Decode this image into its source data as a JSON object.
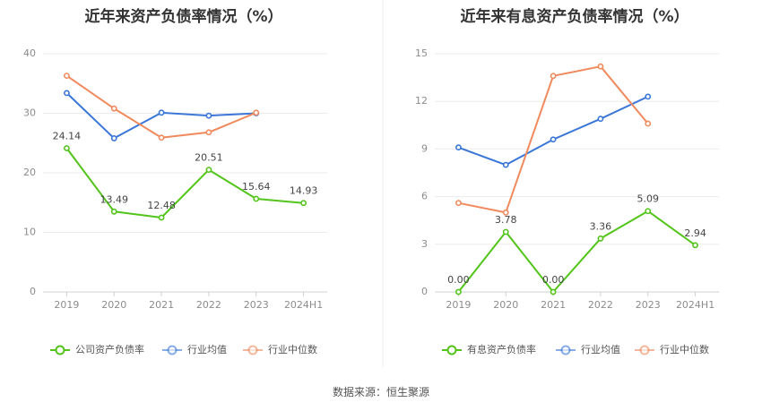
{
  "source": "数据来源：恒生聚源",
  "chart_data": [
    {
      "type": "line",
      "title": "近年来资产负债率情况（%）",
      "categories": [
        "2019",
        "2020",
        "2021",
        "2022",
        "2023",
        "2024H1"
      ],
      "ylim": [
        0,
        40
      ],
      "yticks": [
        0,
        10,
        20,
        30,
        40
      ],
      "grid": true,
      "legend": "bottom",
      "series": [
        {
          "name": "公司资产负债率",
          "color": "#52c41a",
          "values": [
            24.14,
            13.49,
            12.48,
            20.51,
            15.64,
            14.93
          ],
          "labels": [
            "24.14",
            "13.49",
            "12.48",
            "20.51",
            "15.64",
            "14.93"
          ]
        },
        {
          "name": "行业均值",
          "color": "#3a76d8",
          "values": [
            33.4,
            25.8,
            30.1,
            29.6,
            30.0,
            null
          ]
        },
        {
          "name": "行业中位数",
          "color": "#f08a5d",
          "values": [
            36.3,
            30.8,
            25.9,
            26.8,
            30.1,
            null
          ]
        }
      ]
    },
    {
      "type": "line",
      "title": "近年来有息资产负债率情况（%）",
      "categories": [
        "2019",
        "2020",
        "2021",
        "2022",
        "2023",
        "2024H1"
      ],
      "ylim": [
        0,
        15
      ],
      "yticks": [
        0,
        3,
        6,
        9,
        12,
        15
      ],
      "grid": true,
      "legend": "bottom",
      "series": [
        {
          "name": "有息资产负债率",
          "color": "#52c41a",
          "values": [
            0.0,
            3.78,
            0.0,
            3.36,
            5.09,
            2.94
          ],
          "labels": [
            "0.00",
            "3.78",
            "0.00",
            "3.36",
            "5.09",
            "2.94"
          ]
        },
        {
          "name": "行业均值",
          "color": "#3a76d8",
          "values": [
            9.1,
            8.0,
            9.6,
            10.9,
            12.3,
            null
          ]
        },
        {
          "name": "行业中位数",
          "color": "#f08a5d",
          "values": [
            5.6,
            5.0,
            13.6,
            14.2,
            10.6,
            null
          ]
        }
      ]
    }
  ]
}
